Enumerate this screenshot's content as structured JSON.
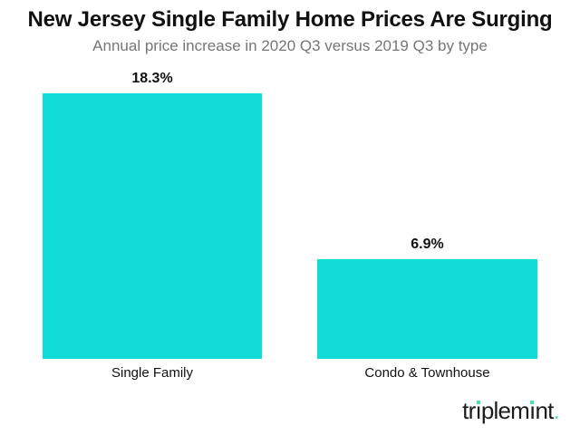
{
  "chart_data": {
    "type": "bar",
    "orientation": "vertical",
    "title": "New Jersey Single Family Home Prices Are Surging",
    "subtitle": "Annual price increase in 2020 Q3 versus 2019 Q3 by type",
    "categories": [
      "Single Family",
      "Condo & Townhouse"
    ],
    "values": [
      18.3,
      6.9
    ],
    "value_labels": [
      "18.3%",
      "6.9%"
    ],
    "unit": "%",
    "xlabel": "",
    "ylabel": "",
    "ylim": [
      0,
      18.3
    ],
    "grid": false,
    "legend": false,
    "bar_color": "#12dcd8"
  },
  "logo": {
    "name": "triplemint.",
    "segments": [
      {
        "text": "tr",
        "type": "plain"
      },
      {
        "text": "ı",
        "type": "mint-dot"
      },
      {
        "text": "plem",
        "type": "plain"
      },
      {
        "text": "ı",
        "type": "mint-dot"
      },
      {
        "text": "nt",
        "type": "plain"
      },
      {
        "text": ".",
        "type": "mint"
      }
    ],
    "text_color": "#1b1b1b",
    "mint_color": "#4fdfae"
  },
  "colors": {
    "background": "#ffffff",
    "bar": "#12dcd8",
    "title_text": "#111111",
    "subtitle_text": "#767676",
    "label_text": "#111111"
  }
}
